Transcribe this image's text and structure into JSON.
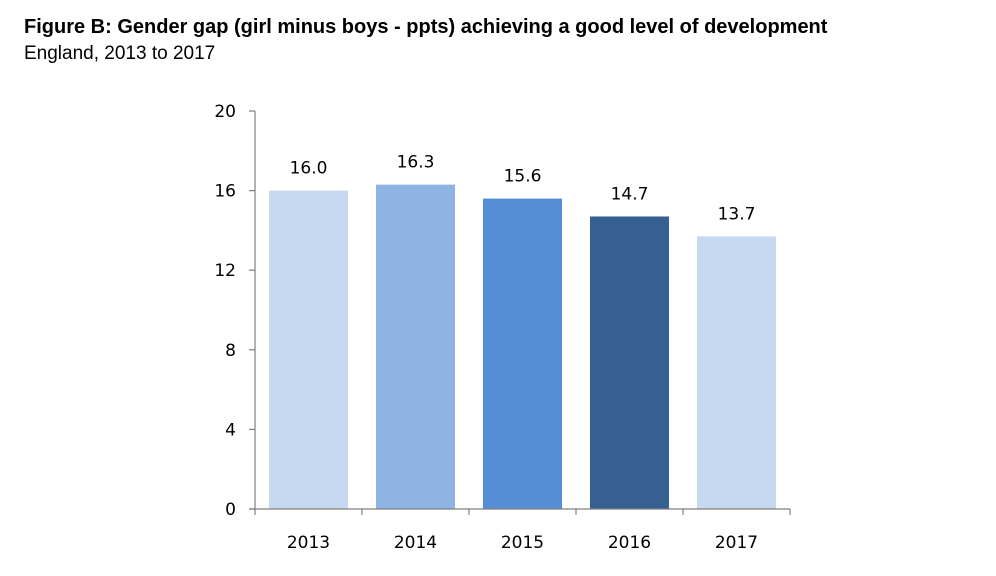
{
  "header": {
    "title": "Figure B: Gender gap (girl minus boys - ppts) achieving a good level of development",
    "subtitle": "England, 2013 to 2017"
  },
  "chart_data": {
    "type": "bar",
    "title": "Figure B: Gender gap (girl minus boys - ppts) achieving a good level of development",
    "subtitle": "England, 2013 to 2017",
    "xlabel": "",
    "ylabel": "",
    "categories": [
      "2013",
      "2014",
      "2015",
      "2016",
      "2017"
    ],
    "values": [
      16.0,
      16.3,
      15.6,
      14.7,
      13.7
    ],
    "value_labels": [
      "16.0",
      "16.3",
      "15.6",
      "14.7",
      "13.7"
    ],
    "colors": [
      "#c6d9f1",
      "#8eb4e3",
      "#558ed5",
      "#376092",
      "#c6d9f1"
    ],
    "ylim": [
      0,
      20
    ],
    "yticks": [
      0,
      4,
      8,
      12,
      16,
      20
    ],
    "grid": false,
    "legend": "none"
  }
}
